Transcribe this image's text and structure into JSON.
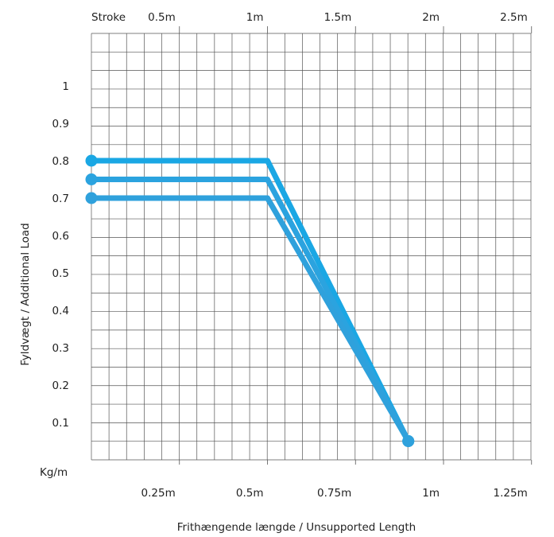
{
  "chart_data": {
    "type": "line",
    "xlabel": "Frithængende længde  / Unsupported Length",
    "ylabel": "Fyldvægt / Additional Load",
    "y_unit_label": "Kg/m",
    "top_axis_label": "Stroke",
    "x_ticks": [
      {
        "value": 0.25,
        "label": "0.25m"
      },
      {
        "value": 0.5,
        "label": "0.5m"
      },
      {
        "value": 0.75,
        "label": "0.75m"
      },
      {
        "value": 1.0,
        "label": "1m"
      },
      {
        "value": 1.25,
        "label": "1.25m"
      }
    ],
    "top_ticks": [
      {
        "value": 0.5,
        "label": "0.5m"
      },
      {
        "value": 1.0,
        "label": "1m"
      },
      {
        "value": 1.5,
        "label": "1.5m"
      },
      {
        "value": 2.0,
        "label": "2m"
      },
      {
        "value": 2.5,
        "label": "2.5m"
      }
    ],
    "y_ticks": [
      0.1,
      0.2,
      0.3,
      0.4,
      0.5,
      0.6,
      0.7,
      0.8,
      0.9,
      1
    ],
    "xlim": [
      0,
      1.25
    ],
    "ylim": [
      0,
      1.2
    ],
    "grid": true,
    "series": [
      {
        "color": "#1aa7e4",
        "points": [
          [
            0,
            0.8
          ],
          [
            0.5,
            0.8
          ],
          [
            0.9,
            0.05
          ]
        ]
      },
      {
        "color": "#2ba3df",
        "points": [
          [
            0,
            0.75
          ],
          [
            0.5,
            0.75
          ],
          [
            0.9,
            0.05
          ]
        ]
      },
      {
        "color": "#2fa1dc",
        "points": [
          [
            0,
            0.7
          ],
          [
            0.5,
            0.7
          ],
          [
            0.9,
            0.05
          ]
        ]
      }
    ]
  }
}
